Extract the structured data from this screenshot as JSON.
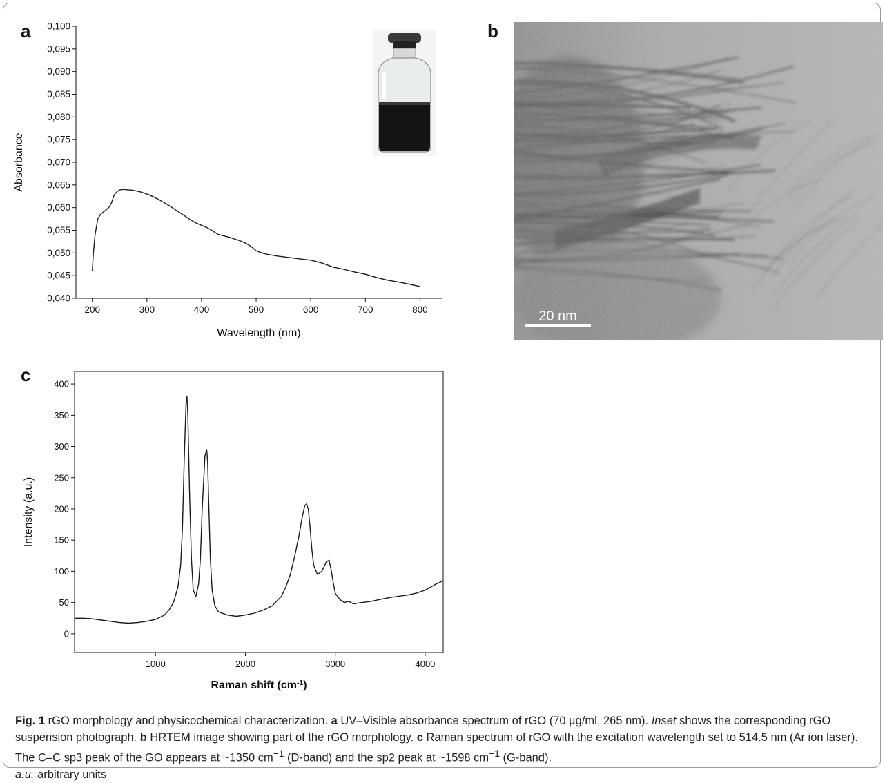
{
  "panels": {
    "a": {
      "letter": "a"
    },
    "b": {
      "letter": "b",
      "scale_bar_label": "20 nm"
    },
    "c": {
      "letter": "c"
    }
  },
  "chart_data": [
    {
      "type": "line",
      "panel": "a",
      "xlabel": "Wavelength  (nm)",
      "ylabel": "Absorbance",
      "xlim": [
        170,
        840
      ],
      "ylim": [
        0.04,
        0.1
      ],
      "x_ticks": [
        200,
        300,
        400,
        500,
        600,
        700,
        800
      ],
      "x_tick_labels": [
        "200",
        "300",
        "400",
        "500",
        "600",
        "700",
        "800"
      ],
      "y_ticks": [
        0.04,
        0.045,
        0.05,
        0.055,
        0.06,
        0.065,
        0.07,
        0.075,
        0.08,
        0.085,
        0.09,
        0.095,
        0.1
      ],
      "y_tick_labels": [
        "0,040",
        "0,045",
        "0,050",
        "0,055",
        "0,060",
        "0,065",
        "0,070",
        "0,075",
        "0,080",
        "0,085",
        "0,090",
        "0,095",
        "0,100"
      ],
      "series": [
        {
          "x": [
            200,
            202,
            205,
            210,
            215,
            220,
            225,
            230,
            235,
            240,
            245,
            250,
            255,
            260,
            265,
            270,
            280,
            290,
            300,
            310,
            320,
            330,
            340,
            350,
            360,
            370,
            380,
            390,
            400,
            410,
            420,
            430,
            440,
            450,
            460,
            470,
            480,
            490,
            500,
            510,
            520,
            540,
            560,
            580,
            600,
            620,
            640,
            660,
            680,
            700,
            720,
            740,
            760,
            780,
            800
          ],
          "y": [
            0.046,
            0.05,
            0.054,
            0.0575,
            0.0585,
            0.059,
            0.0595,
            0.06,
            0.061,
            0.0628,
            0.0635,
            0.0639,
            0.064,
            0.064,
            0.0639,
            0.0639,
            0.0637,
            0.0634,
            0.063,
            0.0625,
            0.0619,
            0.0612,
            0.0605,
            0.0597,
            0.0589,
            0.0581,
            0.0573,
            0.0566,
            0.0561,
            0.0556,
            0.0549,
            0.0541,
            0.0538,
            0.0535,
            0.0531,
            0.0527,
            0.0522,
            0.0515,
            0.0505,
            0.05,
            0.0497,
            0.0493,
            0.049,
            0.0487,
            0.0484,
            0.0478,
            0.0469,
            0.0464,
            0.0458,
            0.0453,
            0.0446,
            0.044,
            0.0436,
            0.0431,
            0.0426
          ]
        }
      ]
    },
    {
      "type": "line",
      "panel": "c",
      "xlabel": "Raman shift (cm",
      "xlabel_sup": "-1",
      "xlabel_end": ")",
      "ylabel": "Intensity (a.u.)",
      "xlim": [
        100,
        4200
      ],
      "ylim": [
        -30,
        420
      ],
      "x_ticks": [
        1000,
        2000,
        3000,
        4000
      ],
      "x_tick_labels": [
        "1000",
        "2000",
        "3000",
        "4000"
      ],
      "y_ticks": [
        0,
        50,
        100,
        150,
        200,
        250,
        300,
        350,
        400
      ],
      "y_tick_labels": [
        "0",
        "50",
        "100",
        "150",
        "200",
        "250",
        "300",
        "350",
        "400"
      ],
      "series": [
        {
          "x": [
            100,
            200,
            300,
            400,
            500,
            600,
            700,
            800,
            900,
            1000,
            1100,
            1150,
            1200,
            1250,
            1280,
            1300,
            1320,
            1340,
            1350,
            1360,
            1380,
            1400,
            1420,
            1450,
            1480,
            1500,
            1520,
            1550,
            1570,
            1580,
            1590,
            1610,
            1630,
            1660,
            1700,
            1800,
            1900,
            2000,
            2100,
            2200,
            2300,
            2400,
            2450,
            2500,
            2550,
            2600,
            2630,
            2660,
            2680,
            2700,
            2720,
            2740,
            2760,
            2800,
            2850,
            2900,
            2930,
            2950,
            2980,
            3000,
            3050,
            3100,
            3150,
            3200,
            3300,
            3400,
            3500,
            3600,
            3700,
            3800,
            3900,
            4000,
            4100,
            4200
          ],
          "y": [
            25,
            25,
            24,
            22,
            20,
            18,
            17,
            18,
            20,
            23,
            30,
            38,
            50,
            75,
            110,
            170,
            280,
            370,
            380,
            350,
            220,
            120,
            70,
            60,
            80,
            120,
            200,
            285,
            295,
            275,
            220,
            120,
            70,
            45,
            35,
            30,
            28,
            30,
            33,
            38,
            45,
            60,
            75,
            95,
            125,
            160,
            185,
            205,
            208,
            200,
            170,
            135,
            110,
            95,
            100,
            115,
            118,
            105,
            80,
            65,
            55,
            50,
            52,
            48,
            50,
            52,
            55,
            58,
            60,
            62,
            65,
            70,
            78,
            85
          ]
        }
      ]
    }
  ],
  "caption": {
    "fig_label": "Fig. 1",
    "title": "  rGO morphology and physicochemical characterization. ",
    "a_letter": "a",
    "a_text": " UV–Visible absorbance spectrum of rGO (70 µg/ml, 265 nm). ",
    "inset_word": "Inset",
    "inset_text": " shows the corresponding rGO suspension photograph. ",
    "b_letter": "b",
    "b_text": " HRTEM image showing part of the rGO morphology. ",
    "c_letter": "c",
    "c_text1": " Raman spectrum of rGO with the excitation wavelength set to 514.5 nm (Ar ion laser). The C–C sp3 peak of the GO appears at ~1350 cm",
    "c_sup1": "−1",
    "c_text2": " (D-band) and the sp2 peak at ~1598 cm",
    "c_sup2": "−1",
    "c_text3": " (G-band).",
    "au_abbr": "a.u.",
    "au_text": " arbitrary units"
  }
}
